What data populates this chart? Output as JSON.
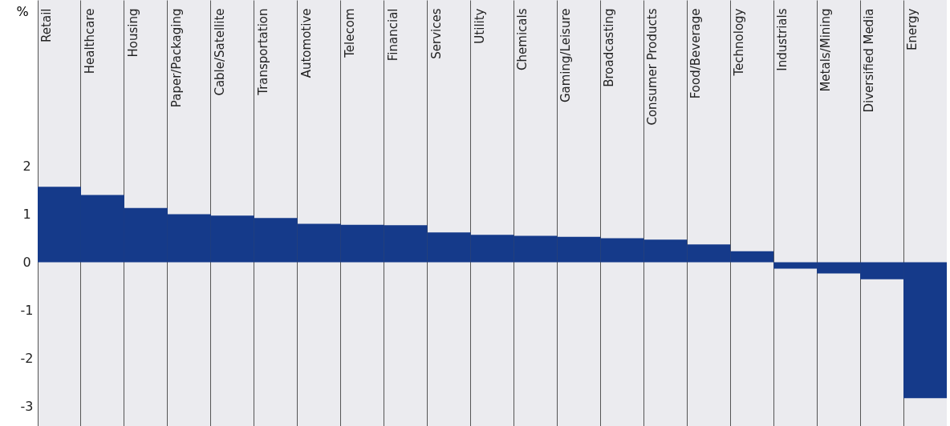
{
  "chart_data": {
    "type": "bar",
    "ylabel": "%",
    "categories": [
      "Retail",
      "Healthcare",
      "Housing",
      "Paper/Packaging",
      "Cable/Satellite",
      "Transportation",
      "Automotive",
      "Telecom",
      "Financial",
      "Services",
      "Utility",
      "Chemicals",
      "Gaming/Leisure",
      "Broadcasting",
      "Consumer Products",
      "Food/Beverage",
      "Technology",
      "Industrials",
      "Metals/Mining",
      "Diversified Media",
      "Energy"
    ],
    "values": [
      1.57,
      1.4,
      1.13,
      1.0,
      0.97,
      0.92,
      0.8,
      0.78,
      0.77,
      0.62,
      0.57,
      0.55,
      0.53,
      0.5,
      0.47,
      0.37,
      0.23,
      -0.13,
      -0.23,
      -0.35,
      -2.82
    ],
    "color": "#153a8a",
    "ylim": [
      -3.4,
      5.45
    ],
    "yticks": [
      -3,
      -2,
      -1,
      0,
      1,
      2
    ],
    "grid": "x"
  }
}
